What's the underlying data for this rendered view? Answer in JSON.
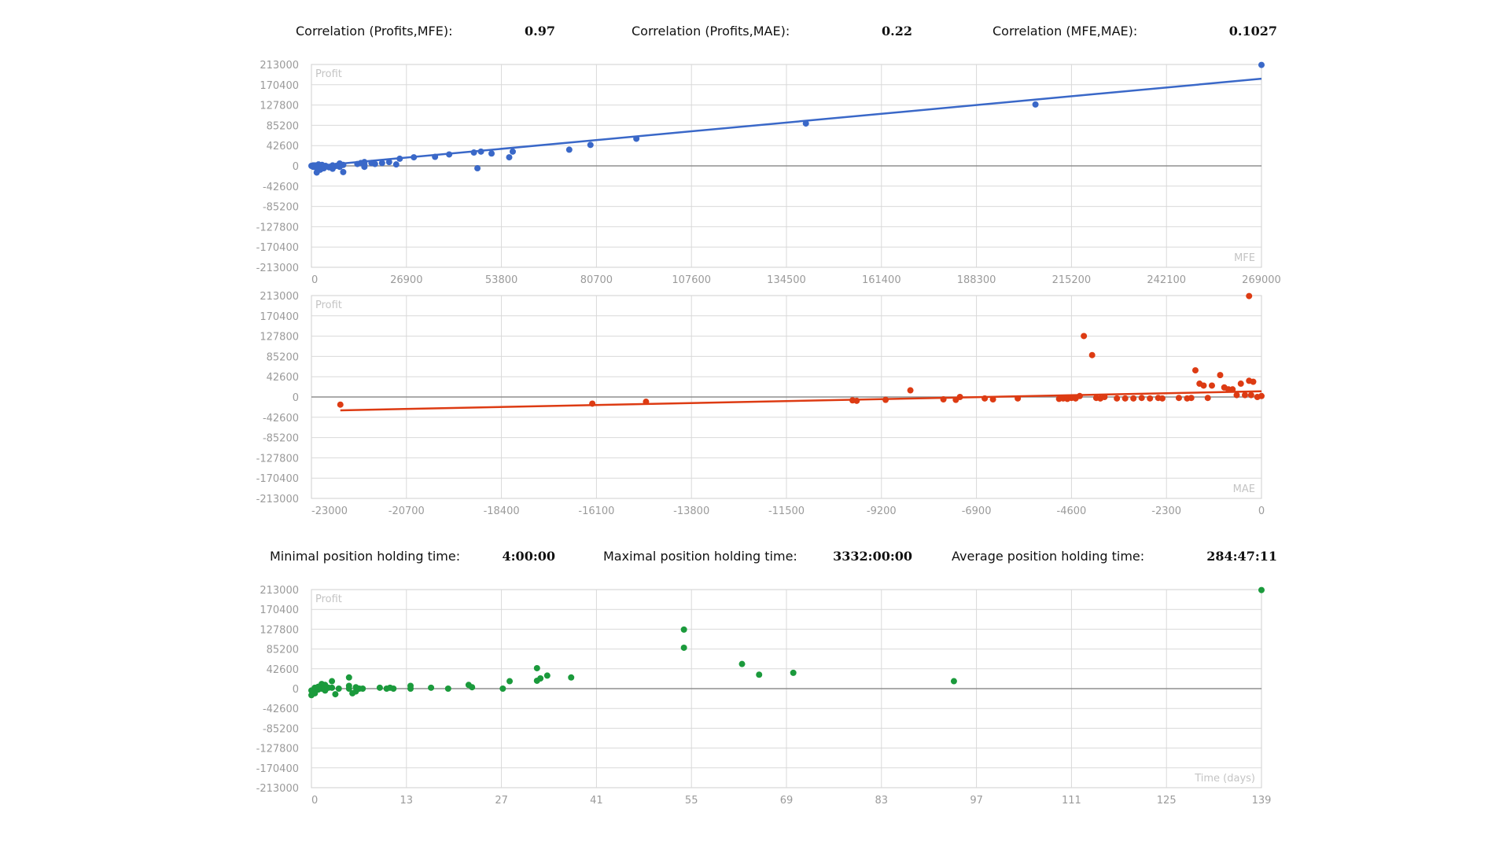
{
  "correlations": [
    {
      "label": "Correlation (Profits,MFE):",
      "value": "0.97"
    },
    {
      "label": "Correlation (Profits,MAE):",
      "value": "0.22"
    },
    {
      "label": "Correlation (MFE,MAE):",
      "value": "0.1027"
    }
  ],
  "holding_times": [
    {
      "label": "Minimal position holding time:",
      "value": "4:00:00"
    },
    {
      "label": "Maximal position holding time:",
      "value": "3332:00:00"
    },
    {
      "label": "Average position holding time:",
      "value": "284:47:11"
    }
  ],
  "colors": {
    "mfe": "#3a68c8",
    "mae": "#dd3b13",
    "time": "#1b9a3c",
    "grid": "#d9d9d9",
    "zero_line": "#8f8f8f"
  },
  "chart_data": [
    {
      "type": "scatter",
      "ylabel": "Profit",
      "xlabel": "MFE",
      "xlim": [
        0,
        269000
      ],
      "ylim": [
        -213000,
        213000
      ],
      "x_ticks": [
        "0",
        "26900",
        "53800",
        "80700",
        "107600",
        "134500",
        "161400",
        "188300",
        "215200",
        "242100",
        "269000"
      ],
      "y_ticks": [
        "213000",
        "170400",
        "127800",
        "85200",
        "42600",
        "0",
        "-42600",
        "-85200",
        "-127800",
        "-170400",
        "-213000"
      ],
      "trend_line": [
        [
          0,
          -1000
        ],
        [
          269000,
          183000
        ]
      ],
      "points": [
        [
          269000,
          212000
        ],
        [
          205000,
          129000
        ],
        [
          140000,
          89000
        ],
        [
          92000,
          57000
        ],
        [
          79000,
          44000
        ],
        [
          73000,
          34000
        ],
        [
          57000,
          30000
        ],
        [
          56000,
          18000
        ],
        [
          51000,
          26000
        ],
        [
          48000,
          30000
        ],
        [
          46000,
          28000
        ],
        [
          47000,
          -5000
        ],
        [
          39000,
          24000
        ],
        [
          35000,
          19000
        ],
        [
          29000,
          18000
        ],
        [
          25000,
          15000
        ],
        [
          24000,
          3000
        ],
        [
          22000,
          8000
        ],
        [
          20000,
          6000
        ],
        [
          18000,
          4000
        ],
        [
          17000,
          6000
        ],
        [
          15000,
          8000
        ],
        [
          15000,
          2000
        ],
        [
          15000,
          -2000
        ],
        [
          14000,
          6000
        ],
        [
          13000,
          4000
        ],
        [
          9000,
          -13000
        ],
        [
          9000,
          2000
        ],
        [
          8000,
          5000
        ],
        [
          8000,
          -2000
        ],
        [
          7000,
          0
        ],
        [
          6000,
          1000
        ],
        [
          6000,
          -6000
        ],
        [
          5000,
          -3000
        ],
        [
          4000,
          0
        ],
        [
          3000,
          2000
        ],
        [
          3000,
          -1000
        ],
        [
          2000,
          -4000
        ],
        [
          2000,
          3000
        ],
        [
          1000,
          1000
        ],
        [
          1000,
          -1000
        ],
        [
          0,
          0
        ],
        [
          500,
          -2000
        ],
        [
          1500,
          -14000
        ],
        [
          2500,
          -8000
        ],
        [
          3500,
          -5000
        ],
        [
          500,
          1000
        ],
        [
          1200,
          -3000
        ]
      ]
    },
    {
      "type": "scatter",
      "ylabel": "Profit",
      "xlabel": "MAE",
      "xlim": [
        -23000,
        0
      ],
      "ylim": [
        -213000,
        213000
      ],
      "x_ticks": [
        "-23000",
        "-20700",
        "-18400",
        "-16100",
        "-13800",
        "-11500",
        "-9200",
        "-6900",
        "-4600",
        "-2300",
        "0"
      ],
      "y_ticks": [
        "213000",
        "170400",
        "127800",
        "85200",
        "42600",
        "0",
        "-42600",
        "-85200",
        "-127800",
        "-170400",
        "-213000"
      ],
      "trend_line": [
        [
          -22300,
          -28000
        ],
        [
          0,
          12000
        ]
      ],
      "points": [
        [
          -22300,
          -16000
        ],
        [
          -16200,
          -14000
        ],
        [
          -14900,
          -10000
        ],
        [
          -9900,
          -7000
        ],
        [
          -9800,
          -8000
        ],
        [
          -9100,
          -6000
        ],
        [
          -8500,
          14000
        ],
        [
          -7700,
          -5000
        ],
        [
          -7400,
          -6000
        ],
        [
          -7300,
          0
        ],
        [
          -6700,
          -3000
        ],
        [
          -6500,
          -5000
        ],
        [
          -5900,
          -3000
        ],
        [
          -4900,
          -4000
        ],
        [
          -4800,
          -3000
        ],
        [
          -4700,
          -4000
        ],
        [
          -4600,
          -2000
        ],
        [
          -4500,
          -3000
        ],
        [
          -4400,
          2000
        ],
        [
          -4300,
          128000
        ],
        [
          -4100,
          88000
        ],
        [
          -4000,
          -2000
        ],
        [
          -3900,
          -3000
        ],
        [
          -3800,
          0
        ],
        [
          -3500,
          -3000
        ],
        [
          -3300,
          -3000
        ],
        [
          -3100,
          -3000
        ],
        [
          -2900,
          -2000
        ],
        [
          -2700,
          -3000
        ],
        [
          -2500,
          -2000
        ],
        [
          -2400,
          -3000
        ],
        [
          -2000,
          -2000
        ],
        [
          -1800,
          -3000
        ],
        [
          -1700,
          -2000
        ],
        [
          -1600,
          56000
        ],
        [
          -1500,
          28000
        ],
        [
          -1400,
          24000
        ],
        [
          -1300,
          -2000
        ],
        [
          -1200,
          24000
        ],
        [
          -1000,
          46000
        ],
        [
          -900,
          20000
        ],
        [
          -800,
          16000
        ],
        [
          -700,
          16000
        ],
        [
          -600,
          4000
        ],
        [
          -500,
          28000
        ],
        [
          -400,
          4000
        ],
        [
          -300,
          34000
        ],
        [
          -250,
          4000
        ],
        [
          -200,
          32000
        ],
        [
          -300,
          212000
        ],
        [
          -100,
          0
        ],
        [
          0,
          2000
        ]
      ]
    },
    {
      "type": "scatter",
      "ylabel": "Profit",
      "xlabel": "Time (days)",
      "xlim": [
        0,
        139
      ],
      "ylim": [
        -213000,
        213000
      ],
      "x_ticks": [
        "0",
        "13",
        "27",
        "41",
        "55",
        "69",
        "83",
        "97",
        "111",
        "125",
        "139"
      ],
      "y_ticks": [
        "213000",
        "170400",
        "127800",
        "85200",
        "42600",
        "0",
        "-42600",
        "-85200",
        "-127800",
        "-170400",
        "-213000"
      ],
      "points": [
        [
          139,
          212000
        ],
        [
          54.5,
          127000
        ],
        [
          54.5,
          88000
        ],
        [
          63,
          53000
        ],
        [
          65.5,
          30000
        ],
        [
          70.5,
          34000
        ],
        [
          94,
          16000
        ],
        [
          33,
          44000
        ],
        [
          33,
          17000
        ],
        [
          33.5,
          22000
        ],
        [
          34.5,
          28000
        ],
        [
          38,
          24000
        ],
        [
          29,
          16000
        ],
        [
          28,
          0
        ],
        [
          23.5,
          3000
        ],
        [
          23,
          8000
        ],
        [
          20,
          0
        ],
        [
          17.5,
          2000
        ],
        [
          14.5,
          0
        ],
        [
          14.5,
          6000
        ],
        [
          12,
          0
        ],
        [
          11.5,
          2000
        ],
        [
          11,
          0
        ],
        [
          10,
          2000
        ],
        [
          7.5,
          0
        ],
        [
          7,
          0
        ],
        [
          6.5,
          -6000
        ],
        [
          6.5,
          3000
        ],
        [
          6,
          -10000
        ],
        [
          5.5,
          0
        ],
        [
          5.5,
          6000
        ],
        [
          5.5,
          24000
        ],
        [
          4,
          0
        ],
        [
          3.5,
          -12000
        ],
        [
          3,
          16000
        ],
        [
          3,
          2000
        ],
        [
          2.5,
          2000
        ],
        [
          2,
          8000
        ],
        [
          2,
          -4000
        ],
        [
          1.5,
          10000
        ],
        [
          1.5,
          0
        ],
        [
          1,
          -2000
        ],
        [
          1,
          4000
        ],
        [
          0.5,
          -10000
        ],
        [
          0.5,
          0
        ],
        [
          0,
          -14000
        ],
        [
          0,
          -4000
        ],
        [
          0.5,
          2000
        ]
      ]
    }
  ]
}
